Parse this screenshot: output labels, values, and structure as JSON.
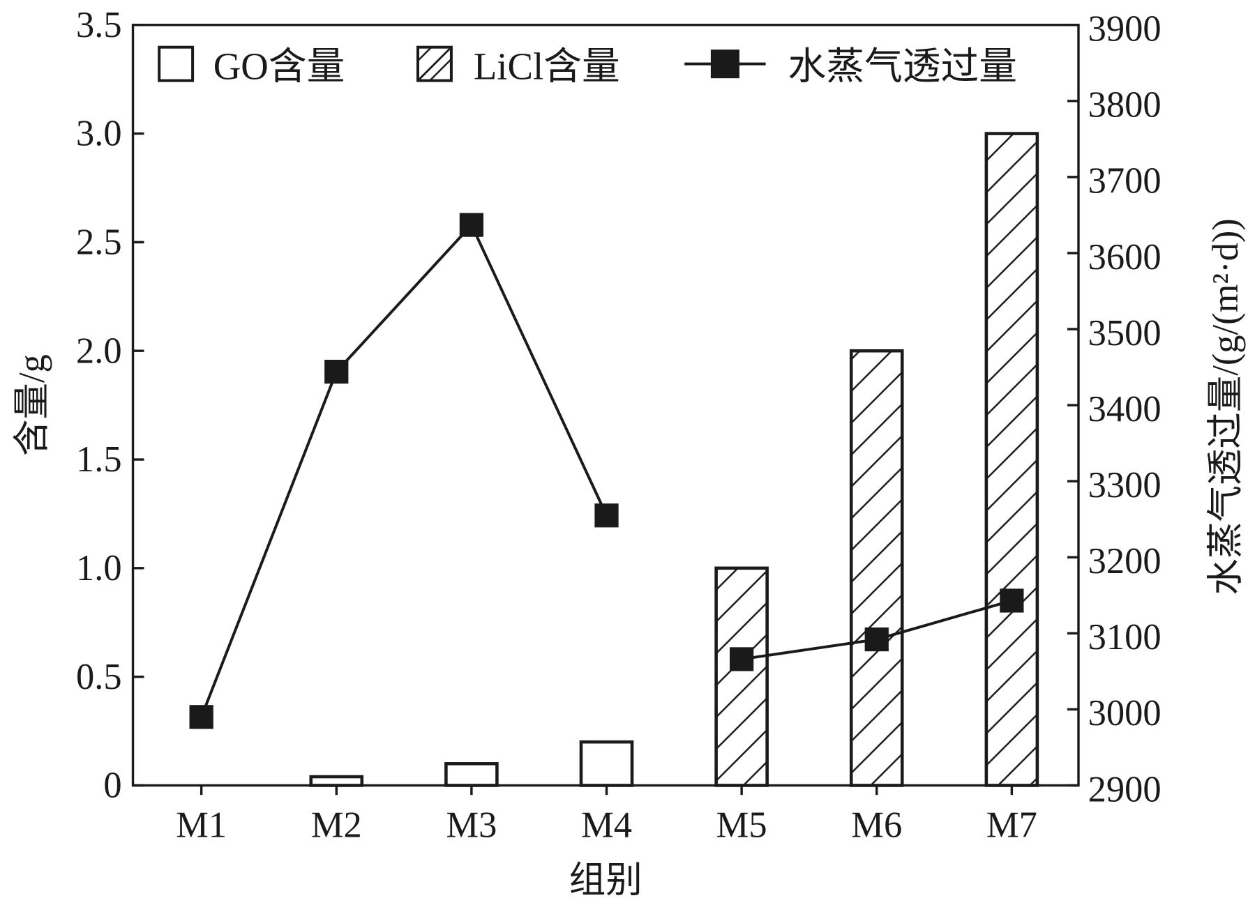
{
  "chart_data": {
    "type": "bar+line",
    "categories": [
      "M1",
      "M2",
      "M3",
      "M4",
      "M5",
      "M6",
      "M7"
    ],
    "xlabel": "组别",
    "ylabel": "含量/g",
    "y2label": "水蒸气透过量/(g/(m²·d))",
    "ylim": [
      0,
      3.5
    ],
    "y2lim": [
      2900,
      3900
    ],
    "yticks": [
      "0",
      "0.5",
      "1.0",
      "1.5",
      "2.0",
      "2.5",
      "3.0",
      "3.5"
    ],
    "y2ticks": [
      "2900",
      "3000",
      "3100",
      "3200",
      "3300",
      "3400",
      "3500",
      "3600",
      "3700",
      "3800",
      "3900"
    ],
    "legend_position": "top",
    "grid": false,
    "series": [
      {
        "name": "GO含量",
        "type": "bar",
        "pattern": "empty",
        "axis": "left",
        "values": [
          0,
          0.04,
          0.1,
          0.2,
          0,
          0,
          0
        ]
      },
      {
        "name": "LiCl含量",
        "type": "bar",
        "pattern": "hatched",
        "axis": "left",
        "values": [
          0,
          0,
          0,
          0,
          1.0,
          2.0,
          3.0
        ]
      },
      {
        "name": "水蒸气透过量",
        "type": "line",
        "marker": "square",
        "axis": "right",
        "values": [
          2990,
          3444,
          3637,
          3255,
          3066,
          3092,
          3143
        ],
        "breaks_after": [
          "M4"
        ]
      }
    ],
    "colors": {
      "stroke": "#1a1a1a",
      "background": "#ffffff"
    }
  }
}
